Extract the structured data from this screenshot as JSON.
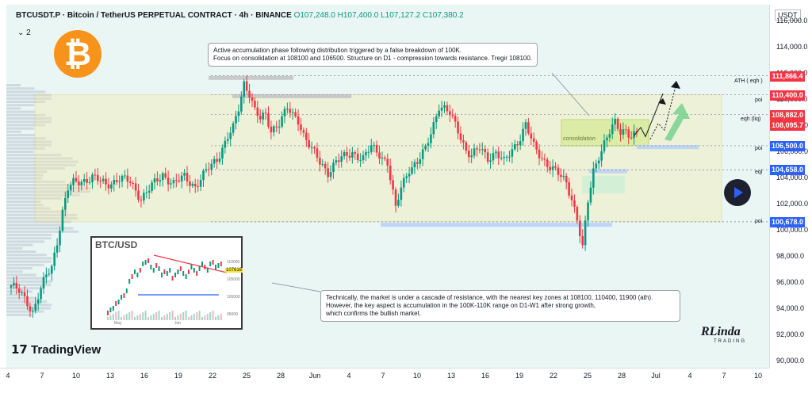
{
  "header": {
    "symbol": "BTCUSDT.P · Bitcoin / TetherUS PERPETUAL CONTRACT · 4h · BINANCE",
    "open": "O107,248.0",
    "high": "H107,400.0",
    "low": "L107,127.2",
    "close": "C107,380.2",
    "indicator_toggle": "⌄ 2"
  },
  "notes": {
    "top_line1": "Active accumulation phase following distribution triggered by a false breakdown of 100K.",
    "top_line2": "Focus on consolidation at 108100 and 106500. Structure on D1 - compression towards resistance. Tregir 108100.",
    "bottom_line1": "Technically, the market is under a cascade of resistance, with the nearest key zones at 108100, 110400, 11900 (ath).",
    "bottom_line2": "However, the key aspect is accumulation in the 100K-110K range on D1-W1 after strong growth,",
    "bottom_line3": "which confirms the bullish market."
  },
  "branding": {
    "tradingview": "TradingView",
    "author_logo": "RLinda",
    "author_sub": "TRADING",
    "bitcoin_glyph": "₿"
  },
  "level_labels": {
    "ath": "ATH ( eqh )",
    "poi_top": "poi",
    "eqh": "eqh (liq)",
    "poi_mid": "poi",
    "eql": "eql",
    "poi_low": "poi",
    "consolidation": "consolidation"
  },
  "inset": {
    "title": "BTC/USD",
    "price_tag": "107616",
    "months": [
      "May",
      "Jun"
    ],
    "prices": [
      "110000",
      "105000",
      "100000",
      "95000"
    ]
  },
  "colors": {
    "up": "#089981",
    "down": "#f23645",
    "blue_label": "#2962ff",
    "red_label": "#f23645",
    "dark_label": "#131722"
  },
  "chart_data": {
    "type": "candlestick",
    "timeframe": "4h",
    "currency": "USDT",
    "ylim": [
      89500,
      117300
    ],
    "yticks": [
      "116,000.0",
      "114,000.0",
      "112,000.0",
      "110,000.0",
      "108,000.0",
      "106,000.0",
      "104,000.0",
      "102,000.0",
      "100,000.0",
      "98,000.0",
      "96,000.0",
      "94,000.0",
      "92,000.0",
      "90,000.0"
    ],
    "xticks": [
      "4",
      "7",
      "10",
      "13",
      "16",
      "19",
      "22",
      "25",
      "28",
      "Jun",
      "4",
      "7",
      "10",
      "13",
      "16",
      "19",
      "22",
      "25",
      "28",
      "Jul",
      "4",
      "7",
      "10"
    ],
    "price_labels": [
      {
        "text": "111,866.4",
        "value": 111866.4,
        "color": "red"
      },
      {
        "text": "110,400.0",
        "value": 110400.0,
        "color": "red"
      },
      {
        "text": "108,882.0",
        "value": 108882.0,
        "color": "red"
      },
      {
        "text": "108,095.7",
        "value": 108095.7,
        "color": "red"
      },
      {
        "text": "106,500.0",
        "value": 106500.0,
        "color": "blue"
      },
      {
        "text": "104,658.0",
        "value": 104658.0,
        "color": "blue"
      },
      {
        "text": "100,678.0",
        "value": 100678.0,
        "color": "blue"
      }
    ],
    "levels": [
      {
        "name": "ATH (eqh)",
        "value": 111866.4
      },
      {
        "name": "poi",
        "value": 110400.0
      },
      {
        "name": "eqh (liq)",
        "value": 108882.0
      },
      {
        "name": "poi",
        "value": 106500.0
      },
      {
        "name": "eql",
        "value": 104658.0
      },
      {
        "name": "poi",
        "value": 100678.0
      }
    ],
    "range_box": {
      "top": 110400,
      "bottom": 100678
    },
    "consolidation_box": {
      "top": 108500,
      "bottom": 106500
    },
    "close_path": [
      [
        0,
        95800
      ],
      [
        3,
        95300
      ],
      [
        6,
        94500
      ],
      [
        8,
        93800
      ],
      [
        10,
        95000
      ],
      [
        13,
        96500
      ],
      [
        15,
        97200
      ],
      [
        17,
        99200
      ],
      [
        19,
        101500
      ],
      [
        21,
        103200
      ],
      [
        23,
        103600
      ],
      [
        26,
        103800
      ],
      [
        30,
        104100
      ],
      [
        35,
        103500
      ],
      [
        40,
        104000
      ],
      [
        44,
        103700
      ],
      [
        48,
        102500
      ],
      [
        52,
        103400
      ],
      [
        56,
        104300
      ],
      [
        60,
        103600
      ],
      [
        64,
        104100
      ],
      [
        68,
        103400
      ],
      [
        72,
        104500
      ],
      [
        76,
        105500
      ],
      [
        80,
        107200
      ],
      [
        82,
        107800
      ],
      [
        84,
        109300
      ],
      [
        86,
        111300
      ],
      [
        88,
        110600
      ],
      [
        90,
        109200
      ],
      [
        92,
        108500
      ],
      [
        94,
        108800
      ],
      [
        96,
        107700
      ],
      [
        99,
        108300
      ],
      [
        102,
        109300
      ],
      [
        104,
        108800
      ],
      [
        106,
        108500
      ],
      [
        108,
        107400
      ],
      [
        111,
        106200
      ],
      [
        114,
        105200
      ],
      [
        117,
        104500
      ],
      [
        120,
        105300
      ],
      [
        123,
        105600
      ],
      [
        126,
        106000
      ],
      [
        130,
        105500
      ],
      [
        133,
        106400
      ],
      [
        136,
        105900
      ],
      [
        139,
        105200
      ],
      [
        142,
        101600
      ],
      [
        144,
        103300
      ],
      [
        147,
        104800
      ],
      [
        150,
        105200
      ],
      [
        153,
        106200
      ],
      [
        156,
        108200
      ],
      [
        158,
        109600
      ],
      [
        160,
        109300
      ],
      [
        162,
        108900
      ],
      [
        165,
        107700
      ],
      [
        168,
        106200
      ],
      [
        170,
        105700
      ],
      [
        173,
        106300
      ],
      [
        176,
        105600
      ],
      [
        179,
        106000
      ],
      [
        182,
        105200
      ],
      [
        185,
        106200
      ],
      [
        188,
        107200
      ],
      [
        190,
        108100
      ],
      [
        193,
        106400
      ],
      [
        196,
        105600
      ],
      [
        199,
        104900
      ],
      [
        202,
        104300
      ],
      [
        205,
        103700
      ],
      [
        207,
        102500
      ],
      [
        209,
        100900
      ],
      [
        211,
        98600
      ],
      [
        213,
        102200
      ],
      [
        215,
        104600
      ],
      [
        217,
        105800
      ],
      [
        219,
        106700
      ],
      [
        221,
        107500
      ],
      [
        223,
        108200
      ],
      [
        225,
        107600
      ],
      [
        227,
        107800
      ],
      [
        229,
        107200
      ],
      [
        231,
        107380
      ]
    ]
  }
}
